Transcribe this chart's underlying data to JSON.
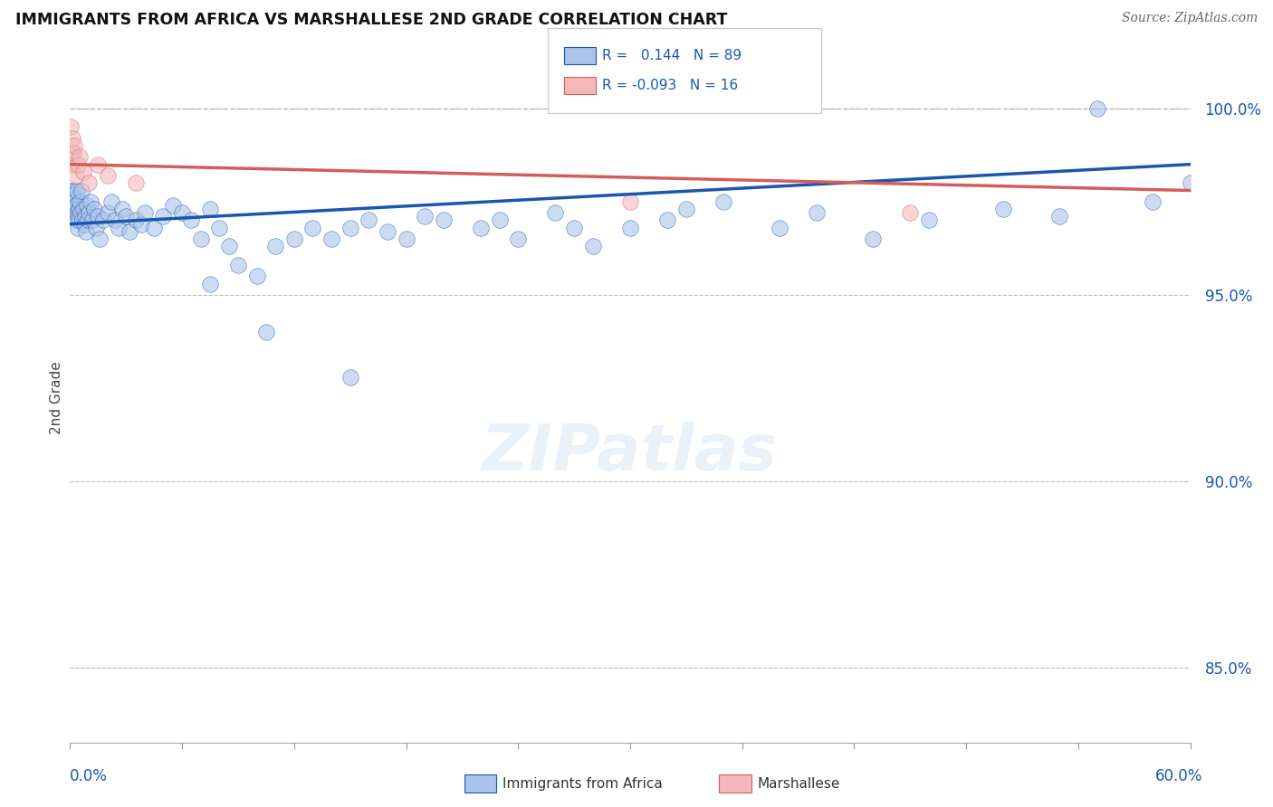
{
  "title": "IMMIGRANTS FROM AFRICA VS MARSHALLESE 2ND GRADE CORRELATION CHART",
  "source": "Source: ZipAtlas.com",
  "ylabel": "2nd Grade",
  "xlim": [
    0.0,
    60.0
  ],
  "ylim": [
    83.0,
    101.5
  ],
  "yticks": [
    85.0,
    90.0,
    95.0,
    100.0
  ],
  "ytick_labels": [
    "85.0%",
    "90.0%",
    "95.0%",
    "100.0%"
  ],
  "blue_R": 0.144,
  "blue_N": 89,
  "pink_R": -0.093,
  "pink_N": 16,
  "blue_color": "#aac4e8",
  "pink_color": "#f4b8b8",
  "blue_line_color": "#1a56b0",
  "pink_line_color": "#d45c5c",
  "dashed_line_color": "#bbbbbb",
  "legend_label_blue": "Immigrants from Africa",
  "legend_label_pink": "Marshallese",
  "watermark": "ZIPatlas",
  "blue_scatter_x": [
    0.05,
    0.08,
    0.1,
    0.12,
    0.15,
    0.18,
    0.2,
    0.22,
    0.25,
    0.28,
    0.3,
    0.32,
    0.35,
    0.38,
    0.4,
    0.42,
    0.45,
    0.48,
    0.5,
    0.55,
    0.6,
    0.65,
    0.7,
    0.75,
    0.8,
    0.85,
    0.9,
    0.95,
    1.0,
    1.1,
    1.2,
    1.3,
    1.4,
    1.5,
    1.6,
    1.8,
    2.0,
    2.2,
    2.4,
    2.6,
    2.8,
    3.0,
    3.2,
    3.5,
    3.8,
    4.0,
    4.5,
    5.0,
    5.5,
    6.0,
    6.5,
    7.0,
    7.5,
    8.0,
    8.5,
    9.0,
    10.0,
    11.0,
    12.0,
    13.0,
    14.0,
    15.0,
    16.0,
    17.0,
    18.0,
    19.0,
    20.0,
    22.0,
    24.0,
    26.0,
    28.0,
    30.0,
    32.0,
    35.0,
    38.0,
    40.0,
    43.0,
    46.0,
    50.0,
    53.0,
    55.0,
    58.0,
    60.0,
    33.0,
    27.0,
    23.0,
    10.5,
    7.5,
    15.0
  ],
  "blue_scatter_y": [
    97.8,
    97.6,
    97.5,
    97.7,
    97.4,
    97.8,
    97.2,
    97.5,
    97.3,
    97.6,
    97.0,
    97.4,
    97.2,
    97.8,
    96.8,
    97.1,
    97.3,
    97.0,
    97.5,
    97.2,
    97.8,
    97.0,
    97.3,
    96.9,
    97.1,
    96.7,
    97.4,
    97.0,
    97.2,
    97.5,
    97.0,
    97.3,
    96.8,
    97.1,
    96.5,
    97.0,
    97.2,
    97.5,
    97.0,
    96.8,
    97.3,
    97.1,
    96.7,
    97.0,
    96.9,
    97.2,
    96.8,
    97.1,
    97.4,
    97.2,
    97.0,
    96.5,
    97.3,
    96.8,
    96.3,
    95.8,
    95.5,
    96.3,
    96.5,
    96.8,
    96.5,
    96.8,
    97.0,
    96.7,
    96.5,
    97.1,
    97.0,
    96.8,
    96.5,
    97.2,
    96.3,
    96.8,
    97.0,
    97.5,
    96.8,
    97.2,
    96.5,
    97.0,
    97.3,
    97.1,
    100.0,
    97.5,
    98.0,
    97.3,
    96.8,
    97.0,
    94.0,
    95.3,
    92.8
  ],
  "pink_scatter_x": [
    0.05,
    0.08,
    0.12,
    0.15,
    0.2,
    0.25,
    0.3,
    0.4,
    0.5,
    0.7,
    1.0,
    1.5,
    2.0,
    3.5,
    30.0,
    45.0
  ],
  "pink_scatter_y": [
    99.5,
    98.8,
    99.2,
    98.5,
    98.8,
    99.0,
    98.2,
    98.5,
    98.7,
    98.3,
    98.0,
    98.5,
    98.2,
    98.0,
    97.5,
    97.2
  ],
  "blue_line_x0": 0.0,
  "blue_line_y0": 96.9,
  "blue_line_x1": 60.0,
  "blue_line_y1": 98.5,
  "pink_line_x0": 0.0,
  "pink_line_y0": 98.5,
  "pink_line_x1": 60.0,
  "pink_line_y1": 97.8
}
